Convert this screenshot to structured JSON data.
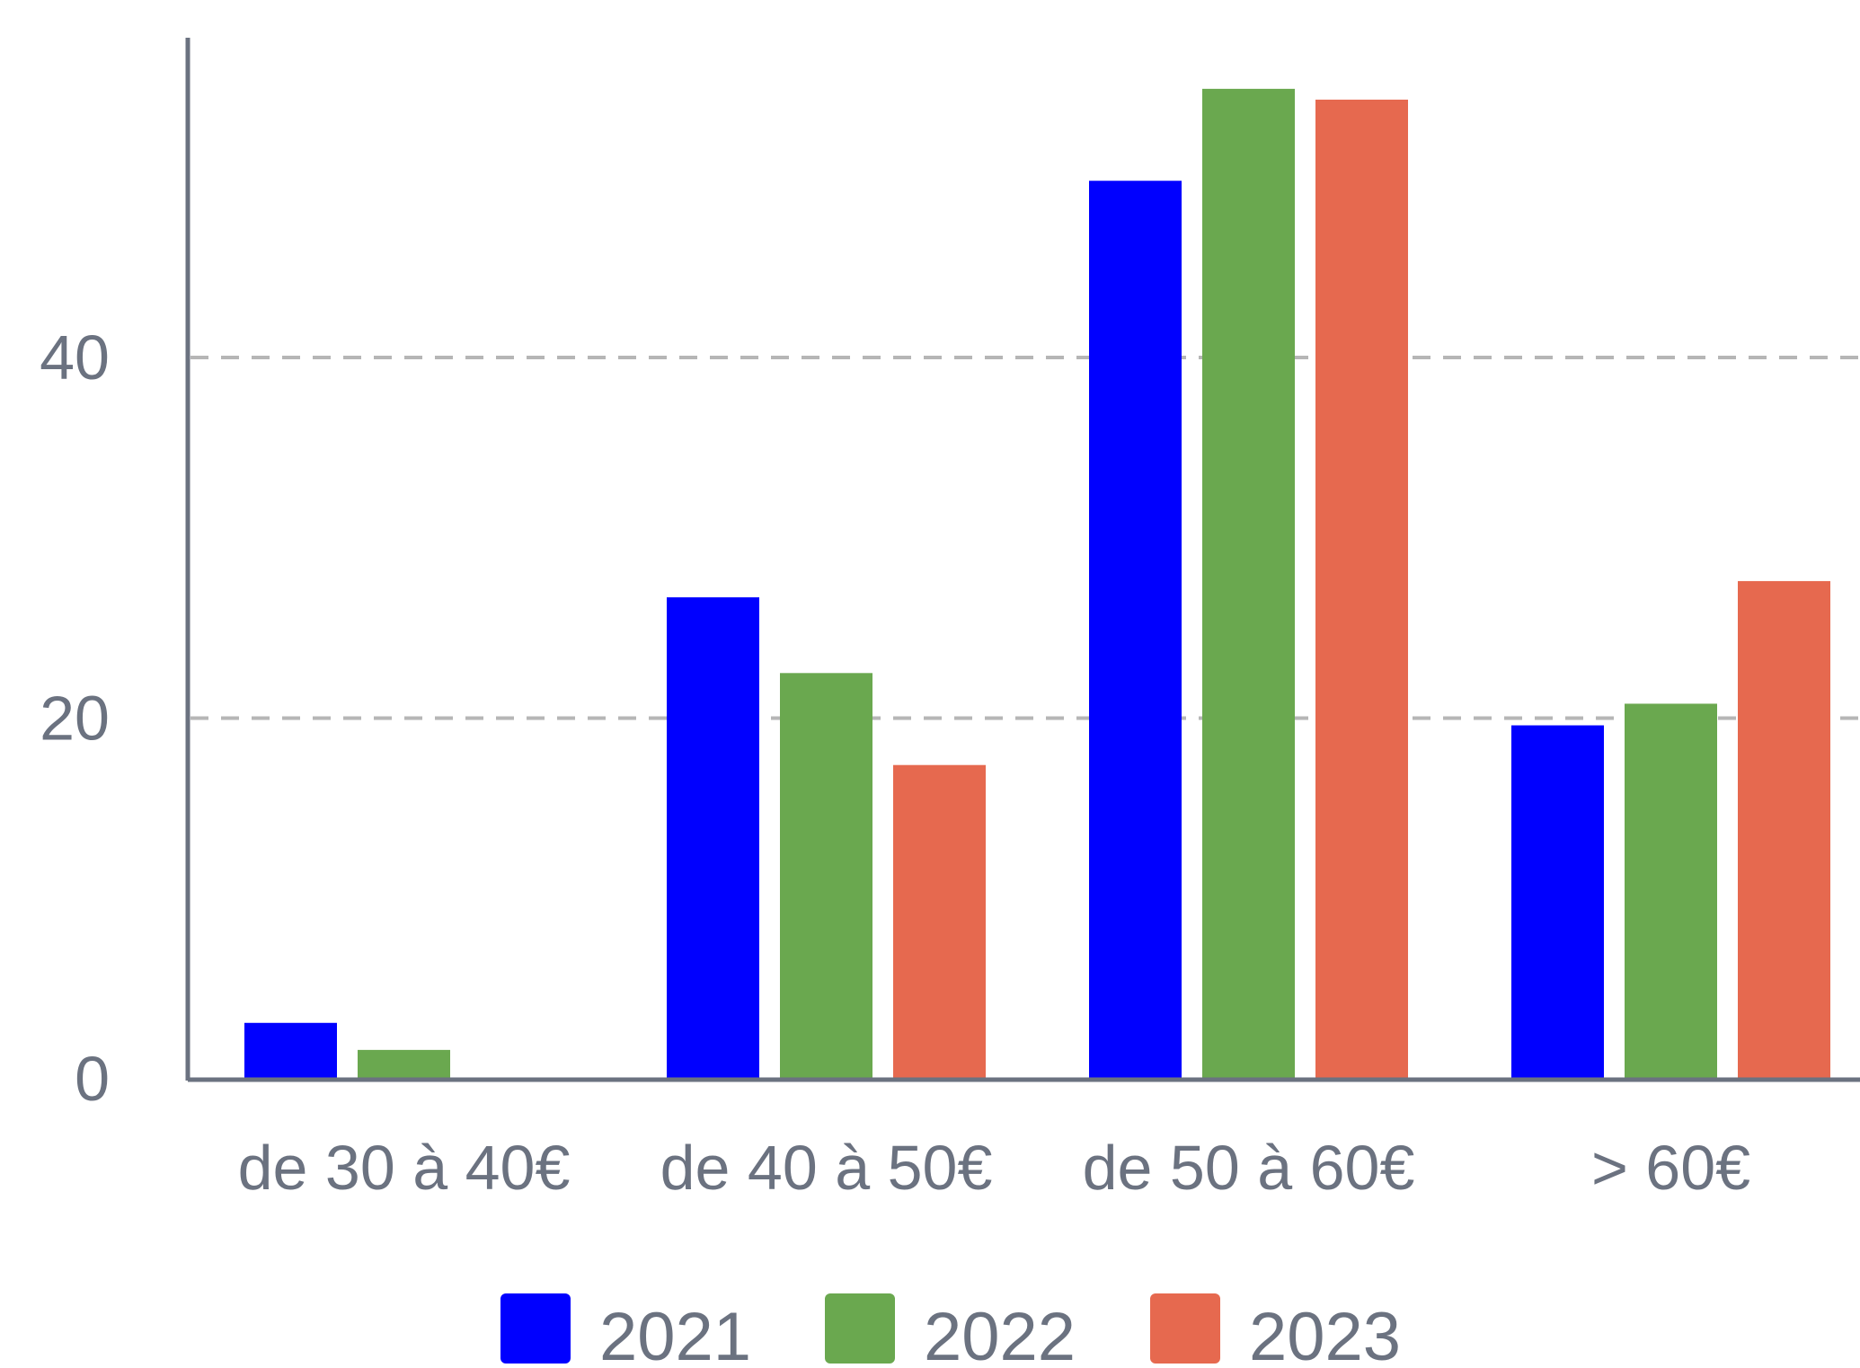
{
  "chart_data": {
    "type": "bar",
    "categories": [
      "de 30 à 40€",
      "de 40 à 50€",
      "de 50 à 60€",
      "> 60€"
    ],
    "series": [
      {
        "name": "2021",
        "color": "#0000ff",
        "values": [
          3.1,
          26.7,
          49.8,
          19.6
        ]
      },
      {
        "name": "2022",
        "color": "#6aa84f",
        "values": [
          1.6,
          22.5,
          54.9,
          20.8
        ]
      },
      {
        "name": "2023",
        "color": "#e6694f",
        "values": [
          0,
          17.4,
          54.3,
          27.6
        ]
      }
    ],
    "yticks": [
      0,
      20,
      40
    ],
    "ylim": [
      0,
      57.5
    ],
    "grid": true,
    "legend_position": "bottom",
    "axis_color": "#6b7280",
    "grid_color": "#b6b6b6",
    "label_color": "#6b7280"
  }
}
